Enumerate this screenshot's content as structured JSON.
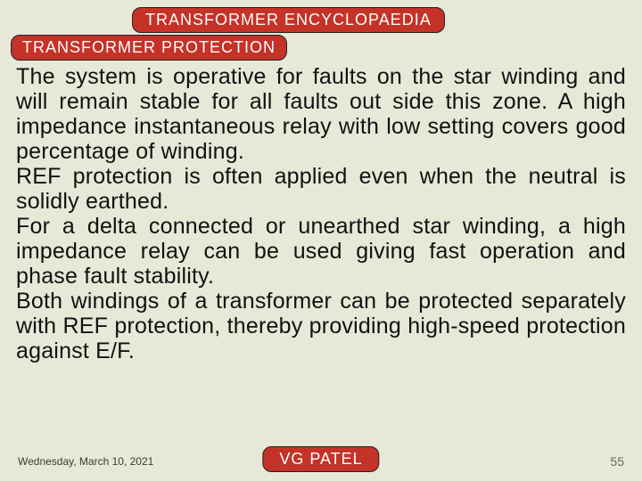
{
  "header": {
    "title": "TRANSFORMER ENCYCLOPAEDIA",
    "subtitle": "TRANSFORMER PROTECTION"
  },
  "body": {
    "p1": "The system is operative for faults on the star winding and will remain stable for all faults out side this zone. A high impedance instantaneous relay with low setting covers good percentage of winding.",
    "p2": "REF protection is often applied even when the neutral is solidly earthed.",
    "p3": "For a delta connected or unearthed star winding, a high impedance relay can be used giving fast operation and phase fault stability.",
    "p4": "Both windings of a transformer can be protec­ted separately with REF protection, thereby providing high-speed protection against E/F."
  },
  "footer": {
    "date": "Wednesday, March 10, 2021",
    "author": "VG PATEL",
    "page": "55"
  },
  "colors": {
    "background": "#e8e8d8",
    "accent": "#c43228",
    "text": "#111111",
    "footer_text": "#6a6a5a"
  }
}
